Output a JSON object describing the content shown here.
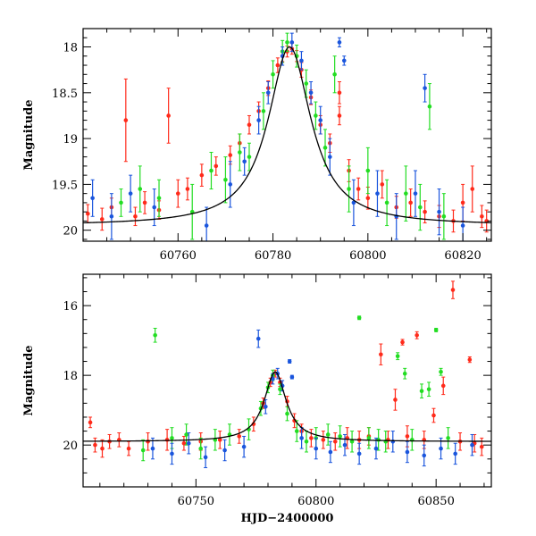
{
  "chart_data": [
    {
      "type": "scatter",
      "title": "",
      "xlabel": "",
      "ylabel": "Magnitude",
      "xlim": [
        60740,
        60826
      ],
      "ylim": [
        20.12,
        17.8
      ],
      "y_inverted": true,
      "xticks": [
        60760,
        60780,
        60800,
        60820
      ],
      "yticks": [
        18,
        18.5,
        19,
        19.5,
        20
      ],
      "ytick_labels": [
        "18",
        "18.5",
        "19",
        "19.5",
        "20"
      ],
      "grid": false,
      "legend": "none",
      "model_curve": {
        "peak_x": 60783.5,
        "peak_mag": 18.0,
        "base_mag": 19.95,
        "width": 5.5,
        "color": "#000000"
      },
      "series": [
        {
          "color": "#ff2a1a",
          "points": [
            [
              60741,
              19.82,
              0.1
            ],
            [
              60744,
              19.88,
              0.12
            ],
            [
              60746,
              19.75,
              0.1
            ],
            [
              60749,
              18.8,
              0.45
            ],
            [
              60751,
              19.85,
              0.1
            ],
            [
              60753,
              19.7,
              0.12
            ],
            [
              60756,
              19.78,
              0.1
            ],
            [
              60758,
              18.75,
              0.3
            ],
            [
              60760,
              19.6,
              0.15
            ],
            [
              60762,
              19.55,
              0.12
            ],
            [
              60765,
              19.4,
              0.12
            ],
            [
              60768,
              19.3,
              0.1
            ],
            [
              60771,
              19.18,
              0.1
            ],
            [
              60773,
              19.05,
              0.1
            ],
            [
              60775,
              18.85,
              0.1
            ],
            [
              60777,
              18.7,
              0.1
            ],
            [
              60779,
              18.45,
              0.08
            ],
            [
              60781,
              18.2,
              0.08
            ],
            [
              60782,
              18.1,
              0.06
            ],
            [
              60783,
              18.05,
              0.06
            ],
            [
              60784,
              18.02,
              0.06
            ],
            [
              60785,
              18.1,
              0.06
            ],
            [
              60786,
              18.25,
              0.08
            ],
            [
              60788,
              18.55,
              0.08
            ],
            [
              60790,
              18.85,
              0.1
            ],
            [
              60792,
              19.05,
              0.1
            ],
            [
              60794,
              18.5,
              0.12
            ],
            [
              60794,
              18.75,
              0.1
            ],
            [
              60796,
              19.35,
              0.12
            ],
            [
              60798,
              19.55,
              0.12
            ],
            [
              60800,
              19.65,
              0.12
            ],
            [
              60803,
              19.5,
              0.15
            ],
            [
              60806,
              19.75,
              0.12
            ],
            [
              60809,
              19.7,
              0.15
            ],
            [
              60812,
              19.8,
              0.12
            ],
            [
              60815,
              19.85,
              0.12
            ],
            [
              60818,
              19.9,
              0.12
            ],
            [
              60820,
              19.7,
              0.2
            ],
            [
              60822,
              19.55,
              0.25
            ],
            [
              60824,
              19.85,
              0.12
            ],
            [
              60825,
              19.9,
              0.12
            ]
          ]
        },
        {
          "color": "#22dd22",
          "points": [
            [
              60748,
              19.7,
              0.15
            ],
            [
              60752,
              19.55,
              0.25
            ],
            [
              60756,
              19.65,
              0.2
            ],
            [
              60763,
              19.8,
              0.3
            ],
            [
              60767,
              19.35,
              0.2
            ],
            [
              60770,
              19.45,
              0.25
            ],
            [
              60773,
              19.15,
              0.2
            ],
            [
              60775,
              19.2,
              0.15
            ],
            [
              60778,
              18.7,
              0.2
            ],
            [
              60780,
              18.3,
              0.15
            ],
            [
              60782,
              18.05,
              0.12
            ],
            [
              60783,
              17.95,
              0.1
            ],
            [
              60785,
              18.1,
              0.12
            ],
            [
              60787,
              18.4,
              0.15
            ],
            [
              60789,
              18.75,
              0.15
            ],
            [
              60791,
              19.1,
              0.2
            ],
            [
              60793,
              18.3,
              0.2
            ],
            [
              60796,
              19.55,
              0.25
            ],
            [
              60800,
              19.35,
              0.25
            ],
            [
              60804,
              19.7,
              0.25
            ],
            [
              60808,
              19.6,
              0.3
            ],
            [
              60811,
              19.75,
              0.25
            ],
            [
              60813,
              18.65,
              0.25
            ],
            [
              60816,
              19.85,
              0.25
            ]
          ]
        },
        {
          "color": "#1a55dd",
          "points": [
            [
              60742,
              19.65,
              0.2
            ],
            [
              60746,
              19.85,
              0.25
            ],
            [
              60750,
              19.6,
              0.2
            ],
            [
              60755,
              19.75,
              0.2
            ],
            [
              60766,
              19.95,
              0.2
            ],
            [
              60771,
              19.5,
              0.25
            ],
            [
              60774,
              19.25,
              0.15
            ],
            [
              60777,
              18.8,
              0.15
            ],
            [
              60779,
              18.5,
              0.12
            ],
            [
              60782,
              18.1,
              0.1
            ],
            [
              60784,
              17.95,
              0.1
            ],
            [
              60786,
              18.15,
              0.1
            ],
            [
              60788,
              18.5,
              0.12
            ],
            [
              60790,
              18.8,
              0.15
            ],
            [
              60792,
              19.2,
              0.2
            ],
            [
              60794,
              17.95,
              0.05
            ],
            [
              60795,
              18.15,
              0.05
            ],
            [
              60797,
              19.7,
              0.25
            ],
            [
              60802,
              19.6,
              0.25
            ],
            [
              60806,
              19.85,
              0.25
            ],
            [
              60810,
              19.6,
              0.25
            ],
            [
              60812,
              18.45,
              0.15
            ],
            [
              60815,
              19.8,
              0.25
            ],
            [
              60820,
              19.95,
              0.2
            ]
          ]
        }
      ]
    },
    {
      "type": "scatter",
      "title": "",
      "xlabel": "HJD−2400000",
      "ylabel": "Magnitude",
      "xlim": [
        60703,
        60873
      ],
      "ylim": [
        21.2,
        15.1
      ],
      "y_inverted": true,
      "xticks": [
        60750,
        60800,
        60850
      ],
      "yticks": [
        16,
        18,
        20
      ],
      "ytick_labels": [
        "16",
        "18",
        "20"
      ],
      "grid": false,
      "legend": "none",
      "model_curve": {
        "peak_x": 60783,
        "peak_mag": 17.9,
        "base_mag": 19.9,
        "width": 5.5,
        "color": "#000000"
      },
      "series": [
        {
          "color": "#ff2a1a",
          "points": [
            [
              60706,
              19.35,
              0.15
            ],
            [
              60708,
              20.0,
              0.2
            ],
            [
              60711,
              20.1,
              0.25
            ],
            [
              60714,
              19.9,
              0.2
            ],
            [
              60718,
              19.85,
              0.2
            ],
            [
              60722,
              20.1,
              0.2
            ],
            [
              60730,
              19.9,
              0.25
            ],
            [
              60738,
              19.85,
              0.3
            ],
            [
              60745,
              19.95,
              0.2
            ],
            [
              60752,
              19.9,
              0.25
            ],
            [
              60760,
              19.85,
              0.25
            ],
            [
              60768,
              19.75,
              0.2
            ],
            [
              60774,
              19.4,
              0.2
            ],
            [
              60778,
              18.8,
              0.15
            ],
            [
              60781,
              18.2,
              0.12
            ],
            [
              60783,
              17.95,
              0.1
            ],
            [
              60785,
              18.2,
              0.12
            ],
            [
              60788,
              18.75,
              0.15
            ],
            [
              60791,
              19.3,
              0.2
            ],
            [
              60794,
              19.6,
              0.2
            ],
            [
              60798,
              19.8,
              0.25
            ],
            [
              60803,
              19.85,
              0.25
            ],
            [
              60808,
              19.9,
              0.25
            ],
            [
              60813,
              19.8,
              0.3
            ],
            [
              60818,
              19.85,
              0.25
            ],
            [
              60822,
              19.75,
              0.25
            ],
            [
              60827,
              17.4,
              0.3
            ],
            [
              60830,
              19.85,
              0.25
            ],
            [
              60833,
              18.7,
              0.3
            ],
            [
              60836,
              17.05,
              0.08
            ],
            [
              60838,
              19.75,
              0.3
            ],
            [
              60842,
              16.85,
              0.1
            ],
            [
              60845,
              19.85,
              0.25
            ],
            [
              60849,
              19.15,
              0.2
            ],
            [
              60853,
              18.3,
              0.25
            ],
            [
              60857,
              15.55,
              0.25
            ],
            [
              60860,
              19.9,
              0.25
            ],
            [
              60864,
              17.55,
              0.08
            ],
            [
              60866,
              19.95,
              0.25
            ],
            [
              60869,
              20.05,
              0.25
            ]
          ]
        },
        {
          "color": "#22dd22",
          "points": [
            [
              60728,
              20.15,
              0.3
            ],
            [
              60733,
              16.85,
              0.2
            ],
            [
              60740,
              19.8,
              0.3
            ],
            [
              60746,
              19.7,
              0.3
            ],
            [
              60752,
              20.1,
              0.3
            ],
            [
              60758,
              19.85,
              0.3
            ],
            [
              60764,
              19.7,
              0.3
            ],
            [
              60772,
              19.55,
              0.3
            ],
            [
              60777,
              18.95,
              0.2
            ],
            [
              60780,
              18.35,
              0.15
            ],
            [
              60782,
              18.0,
              0.15
            ],
            [
              60785,
              18.4,
              0.15
            ],
            [
              60788,
              19.1,
              0.2
            ],
            [
              60792,
              19.6,
              0.3
            ],
            [
              60796,
              19.9,
              0.3
            ],
            [
              60800,
              19.8,
              0.3
            ],
            [
              60805,
              19.7,
              0.3
            ],
            [
              60810,
              19.75,
              0.3
            ],
            [
              60815,
              19.9,
              0.3
            ],
            [
              60818,
              16.35,
              0.05
            ],
            [
              60822,
              19.8,
              0.3
            ],
            [
              60826,
              19.85,
              0.3
            ],
            [
              60829,
              19.9,
              0.3
            ],
            [
              60834,
              17.45,
              0.1
            ],
            [
              60837,
              17.95,
              0.15
            ],
            [
              60840,
              19.85,
              0.3
            ],
            [
              60844,
              18.45,
              0.2
            ],
            [
              60847,
              18.4,
              0.2
            ],
            [
              60850,
              16.7,
              0.05
            ],
            [
              60852,
              17.9,
              0.1
            ],
            [
              60855,
              19.8,
              0.3
            ]
          ]
        },
        {
          "color": "#1a55dd",
          "points": [
            [
              60732,
              20.1,
              0.3
            ],
            [
              60740,
              20.25,
              0.3
            ],
            [
              60747,
              19.95,
              0.3
            ],
            [
              60754,
              20.35,
              0.3
            ],
            [
              60762,
              20.15,
              0.3
            ],
            [
              60770,
              20.05,
              0.3
            ],
            [
              60776,
              16.95,
              0.25
            ],
            [
              60779,
              18.9,
              0.2
            ],
            [
              60782,
              18.1,
              0.15
            ],
            [
              60784,
              17.95,
              0.15
            ],
            [
              60786,
              18.3,
              0.15
            ],
            [
              60789,
              17.6,
              0.05
            ],
            [
              60790,
              18.05,
              0.05
            ],
            [
              60794,
              19.8,
              0.3
            ],
            [
              60800,
              20.1,
              0.3
            ],
            [
              60806,
              20.2,
              0.3
            ],
            [
              60812,
              20.0,
              0.3
            ],
            [
              60818,
              20.25,
              0.3
            ],
            [
              60825,
              20.1,
              0.3
            ],
            [
              60832,
              19.9,
              0.3
            ],
            [
              60838,
              20.2,
              0.3
            ],
            [
              60845,
              20.3,
              0.3
            ],
            [
              60852,
              20.1,
              0.3
            ],
            [
              60858,
              20.25,
              0.3
            ],
            [
              60865,
              20.0,
              0.3
            ]
          ]
        }
      ]
    }
  ]
}
